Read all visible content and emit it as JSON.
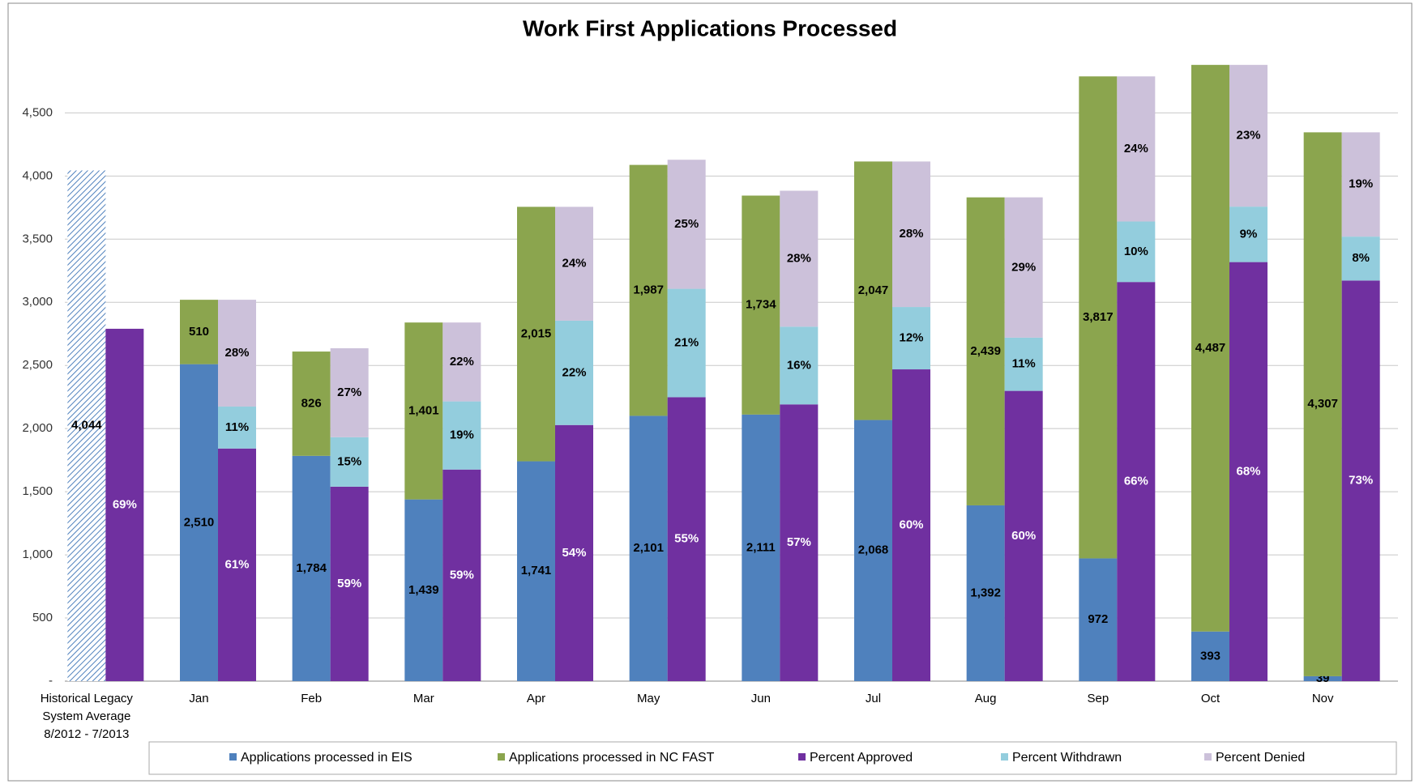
{
  "chart_data": {
    "type": "stacked-bar-pair",
    "title": "Work First Applications Processed",
    "categories": [
      "Historical Legacy System Average 8/2012 - 7/2013",
      "Jan",
      "Feb",
      "Mar",
      "Apr",
      "May",
      "Jun",
      "Jul",
      "Aug",
      "Sep",
      "Oct",
      "Nov"
    ],
    "historical": {
      "color": "#4f81bd",
      "pattern": "hatch",
      "values": [
        4044
      ],
      "value_labels": [
        "4,044"
      ]
    },
    "series": [
      {
        "name": "Applications processed in EIS",
        "color": "#4f81bd",
        "label_color": "#000000",
        "stack": "count",
        "values": [
          null,
          2510,
          1784,
          1439,
          1741,
          2101,
          2111,
          2068,
          1392,
          972,
          393,
          39
        ],
        "value_labels": [
          null,
          "2,510",
          "1,784",
          "1,439",
          "1,741",
          "2,101",
          "2,111",
          "2,068",
          "1,392",
          "972",
          "393",
          "39"
        ]
      },
      {
        "name": "Applications processed in NC FAST",
        "color": "#8ba54e",
        "label_color": "#000000",
        "stack": "count",
        "values": [
          null,
          510,
          826,
          1401,
          2015,
          1987,
          1734,
          2047,
          2439,
          3817,
          4487,
          4307
        ],
        "value_labels": [
          null,
          "510",
          "826",
          "1,401",
          "2,015",
          "1,987",
          "1,734",
          "2,047",
          "2,439",
          "3,817",
          "4,487",
          "4,307"
        ]
      },
      {
        "name": "Percent Approved",
        "color": "#7030a0",
        "label_color": "#ffffff",
        "stack": "percent",
        "values": [
          69,
          61,
          59,
          59,
          54,
          55,
          57,
          60,
          60,
          66,
          68,
          73
        ],
        "value_labels": [
          "69%",
          "61%",
          "59%",
          "59%",
          "54%",
          "55%",
          "57%",
          "60%",
          "60%",
          "66%",
          "68%",
          "73%"
        ]
      },
      {
        "name": "Percent Withdrawn",
        "color": "#93cddd",
        "label_color": "#000000",
        "stack": "percent",
        "values": [
          null,
          11,
          15,
          19,
          22,
          21,
          16,
          12,
          11,
          10,
          9,
          8
        ],
        "value_labels": [
          null,
          "11%",
          "15%",
          "19%",
          "22%",
          "21%",
          "16%",
          "12%",
          "11%",
          "10%",
          "9%",
          "8%"
        ]
      },
      {
        "name": "Percent Denied",
        "color": "#ccc1da",
        "label_color": "#000000",
        "stack": "percent",
        "values": [
          null,
          28,
          27,
          22,
          24,
          25,
          28,
          28,
          29,
          24,
          23,
          19
        ],
        "value_labels": [
          null,
          "28%",
          "27%",
          "22%",
          "24%",
          "25%",
          "28%",
          "28%",
          "29%",
          "24%",
          "23%",
          "19%"
        ]
      }
    ],
    "ylim": [
      0,
      4900
    ],
    "yticks": [
      {
        "value": 0,
        "label": "-"
      },
      500,
      {
        "value": 1000,
        "label": "1,000"
      },
      {
        "value": 1500,
        "label": "1,500"
      },
      {
        "value": 2000,
        "label": "2,000"
      },
      {
        "value": 2500,
        "label": "2,500"
      },
      {
        "value": 3000,
        "label": "3,000"
      },
      {
        "value": 3500,
        "label": "3,500"
      },
      {
        "value": 4000,
        "label": "4,000"
      },
      {
        "value": 4500,
        "label": "4,500"
      }
    ],
    "grid": true,
    "legend": "bottom"
  }
}
